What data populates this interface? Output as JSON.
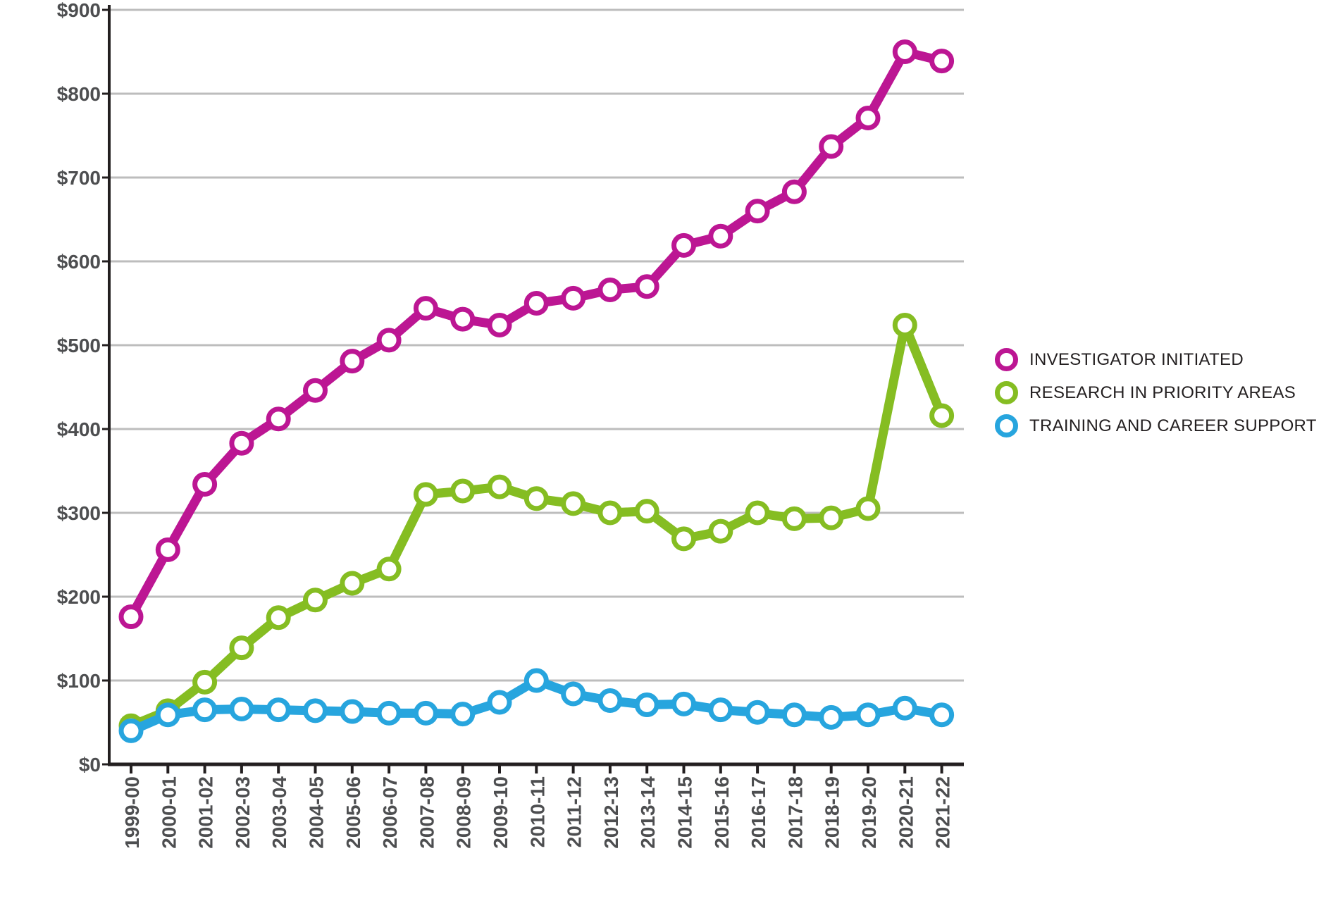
{
  "chart_data": {
    "type": "line",
    "title": "",
    "xlabel": "",
    "ylabel": "",
    "x_categories": [
      "1999-00",
      "2000-01",
      "2001-02",
      "2002-03",
      "2003-04",
      "2004-05",
      "2005-06",
      "2006-07",
      "2007-08",
      "2008-09",
      "2009-10",
      "2010-11",
      "2011-12",
      "2012-13",
      "2013-14",
      "2014-15",
      "2015-16",
      "2016-17",
      "2017-18",
      "2018-19",
      "2019-20",
      "2020-21",
      "2021-22"
    ],
    "series": [
      {
        "name": "INVESTIGATOR INITIATED",
        "color": "#BC1693",
        "values": [
          176,
          256,
          334,
          383,
          412,
          446,
          481,
          506,
          544,
          531,
          524,
          550,
          556,
          566,
          570,
          619,
          630,
          660,
          683,
          737,
          771,
          850,
          839
        ]
      },
      {
        "name": "RESEARCH IN PRIORITY AREAS",
        "color": "#85BD22",
        "values": [
          46,
          64,
          98,
          139,
          175,
          196,
          216,
          233,
          322,
          326,
          331,
          317,
          311,
          300,
          302,
          269,
          278,
          300,
          293,
          294,
          305,
          524,
          416
        ]
      },
      {
        "name": "TRAINING AND CAREER SUPPORT",
        "color": "#27A5DE",
        "values": [
          40,
          59,
          65,
          66,
          65,
          64,
          63,
          61,
          61,
          60,
          74,
          100,
          84,
          76,
          71,
          72,
          65,
          62,
          59,
          56,
          59,
          67,
          59
        ]
      }
    ],
    "ylim": [
      0,
      900
    ],
    "y_ticks": [
      {
        "value": 0,
        "label": "$0"
      },
      {
        "value": 100,
        "label": "$100"
      },
      {
        "value": 200,
        "label": "$200"
      },
      {
        "value": 300,
        "label": "$300"
      },
      {
        "value": 400,
        "label": "$400"
      },
      {
        "value": 500,
        "label": "$500"
      },
      {
        "value": 600,
        "label": "$600"
      },
      {
        "value": 700,
        "label": "$700"
      },
      {
        "value": 800,
        "label": "$800"
      },
      {
        "value": 900,
        "label": "$900"
      }
    ],
    "grid": true,
    "legend_position": "right",
    "grid_color": "#BDBDBD",
    "axis_color": "#231F20",
    "tick_label_color": "#4D4E50"
  }
}
